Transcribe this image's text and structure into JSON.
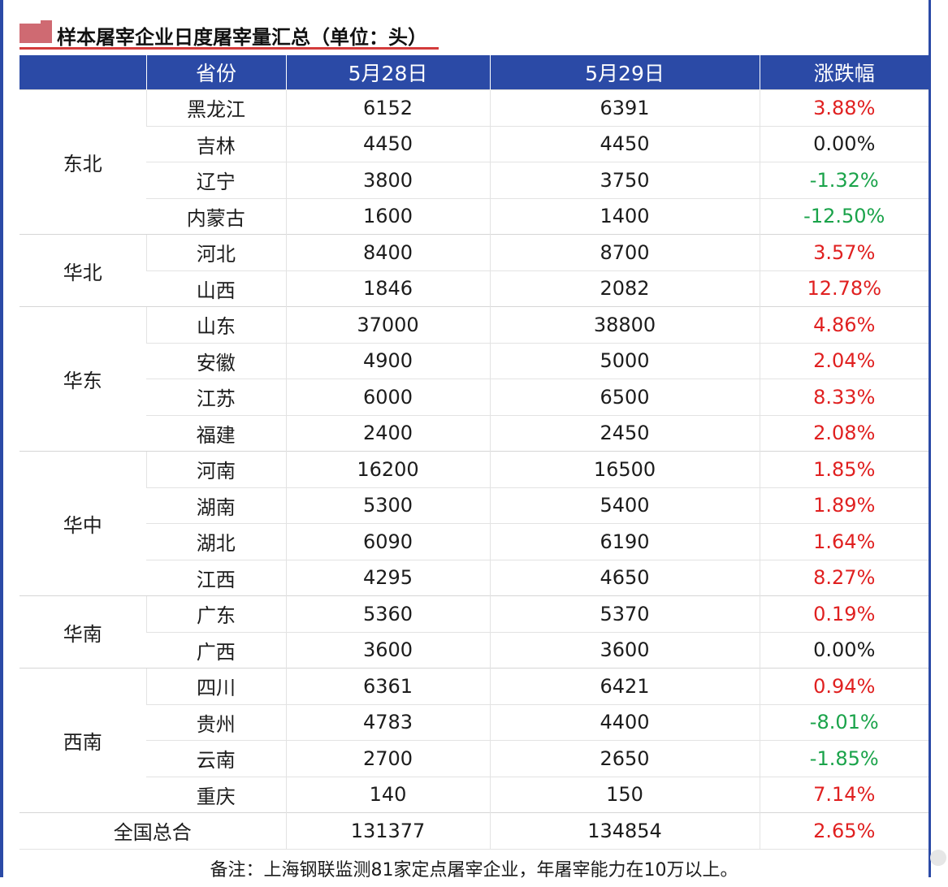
{
  "title": "样本屠宰企业日度屠宰量汇总（单位：头）",
  "colors": {
    "header_bg": "#2b4aa6",
    "up": "#e02020",
    "down": "#1aa34a",
    "title_marker": "#cf6a72",
    "title_underline": "#d33b3b"
  },
  "headers": [
    "省份",
    "5月28日",
    "5月29日",
    "涨跌幅"
  ],
  "groups": [
    {
      "region": "东北",
      "rows": [
        {
          "province": "黑龙江",
          "d28": "6152",
          "d29": "6391",
          "change": "3.88%",
          "dir": "up"
        },
        {
          "province": "吉林",
          "d28": "4450",
          "d29": "4450",
          "change": "0.00%",
          "dir": "flat"
        },
        {
          "province": "辽宁",
          "d28": "3800",
          "d29": "3750",
          "change": "-1.32%",
          "dir": "down"
        },
        {
          "province": "内蒙古",
          "d28": "1600",
          "d29": "1400",
          "change": "-12.50%",
          "dir": "down"
        }
      ]
    },
    {
      "region": "华北",
      "rows": [
        {
          "province": "河北",
          "d28": "8400",
          "d29": "8700",
          "change": "3.57%",
          "dir": "up"
        },
        {
          "province": "山西",
          "d28": "1846",
          "d29": "2082",
          "change": "12.78%",
          "dir": "up"
        }
      ]
    },
    {
      "region": "华东",
      "rows": [
        {
          "province": "山东",
          "d28": "37000",
          "d29": "38800",
          "change": "4.86%",
          "dir": "up"
        },
        {
          "province": "安徽",
          "d28": "4900",
          "d29": "5000",
          "change": "2.04%",
          "dir": "up"
        },
        {
          "province": "江苏",
          "d28": "6000",
          "d29": "6500",
          "change": "8.33%",
          "dir": "up"
        },
        {
          "province": "福建",
          "d28": "2400",
          "d29": "2450",
          "change": "2.08%",
          "dir": "up"
        }
      ]
    },
    {
      "region": "华中",
      "rows": [
        {
          "province": "河南",
          "d28": "16200",
          "d29": "16500",
          "change": "1.85%",
          "dir": "up"
        },
        {
          "province": "湖南",
          "d28": "5300",
          "d29": "5400",
          "change": "1.89%",
          "dir": "up"
        },
        {
          "province": "湖北",
          "d28": "6090",
          "d29": "6190",
          "change": "1.64%",
          "dir": "up"
        },
        {
          "province": "江西",
          "d28": "4295",
          "d29": "4650",
          "change": "8.27%",
          "dir": "up"
        }
      ]
    },
    {
      "region": "华南",
      "rows": [
        {
          "province": "广东",
          "d28": "5360",
          "d29": "5370",
          "change": "0.19%",
          "dir": "up"
        },
        {
          "province": "广西",
          "d28": "3600",
          "d29": "3600",
          "change": "0.00%",
          "dir": "flat"
        }
      ]
    },
    {
      "region": "西南",
      "rows": [
        {
          "province": "四川",
          "d28": "6361",
          "d29": "6421",
          "change": "0.94%",
          "dir": "up"
        },
        {
          "province": "贵州",
          "d28": "4783",
          "d29": "4400",
          "change": "-8.01%",
          "dir": "down"
        },
        {
          "province": "云南",
          "d28": "2700",
          "d29": "2650",
          "change": "-1.85%",
          "dir": "down"
        },
        {
          "province": "重庆",
          "d28": "140",
          "d29": "150",
          "change": "7.14%",
          "dir": "up"
        }
      ]
    }
  ],
  "total": {
    "label": "全国总合",
    "d28": "131377",
    "d29": "134854",
    "change": "2.65%",
    "dir": "up"
  },
  "note": "备注：上海钢联监测81家定点屠宰企业，年屠宰能力在10万以上。"
}
